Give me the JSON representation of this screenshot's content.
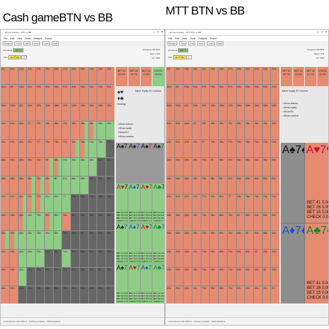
{
  "titles": {
    "left": "Cash gameBTN vs BB",
    "right": "MTT BTN vs BB"
  },
  "windows": [
    {
      "id": "left",
      "titlebar": "Simple Postflop - BTN vs BB",
      "menu": [
        "File",
        "Edit",
        "View",
        "Tools",
        "Analysis",
        "Board"
      ],
      "toolbar": [
        "Ranges",
        "Tree",
        "Calc",
        "Save",
        "Load",
        "Help"
      ],
      "settings": {
        "row1_label": "P1 Range",
        "row1_value": "BB 7 5",
        "flop_label": "Flop",
        "flop_cards": "A♠ 7♥ 2♣",
        "turn_value": "8",
        "right_col": [
          "Progress 100.00%",
          "Expl. 0.3%",
          "Iter 1000"
        ]
      },
      "actions": [
        {
          "label": "BET 41",
          "value": "39.2%",
          "color": "red"
        },
        {
          "label": "BET 26",
          "value": "14.7%",
          "color": "red"
        },
        {
          "label": "BET 15",
          "value": "12.5%",
          "color": "red"
        },
        {
          "label": "CHECK",
          "value": "33.6%",
          "color": "grn"
        }
      ],
      "panel": {
        "suits_top": "♠♥",
        "suits_bot": "♦♣",
        "tab": "Strategy",
        "cols": [
          "Name",
          "Equity",
          "EV",
          "Combos"
        ],
        "checks": [
          "Show actions",
          "Show equity",
          "Show EV",
          "Show combos"
        ]
      },
      "combos": [
        {
          "ranks": [
            "A",
            "7"
          ],
          "suits": [
            "s",
            "s"
          ],
          "tone": "gray",
          "vals": [
            "",
            "",
            "",
            ""
          ]
        },
        {
          "ranks": [
            "A",
            "7"
          ],
          "suits": [
            "s",
            "d"
          ],
          "tone": "gray",
          "vals": [
            "",
            "",
            "",
            ""
          ]
        },
        {
          "ranks": [
            "A",
            "7"
          ],
          "suits": [
            "s",
            "h"
          ],
          "tone": "gray",
          "vals": [
            "",
            "",
            "",
            ""
          ]
        },
        {
          "ranks": [
            "A",
            "7"
          ],
          "suits": [
            "s",
            "c"
          ],
          "tone": "gray",
          "vals": [
            "",
            "",
            "",
            ""
          ]
        },
        {
          "ranks": [
            "A",
            "7"
          ],
          "suits": [
            "h",
            "s"
          ],
          "tone": "grn",
          "vals": [
            "BET 41 0.000",
            "BET 26 0.000",
            "BET 15 0.000",
            "CHECK 0.780"
          ]
        },
        {
          "ranks": [
            "A",
            "7"
          ],
          "suits": [
            "d",
            "s"
          ],
          "tone": "grn",
          "vals": [
            "BET 41 0.000",
            "BET 26 0.000",
            "BET 15 0.000",
            "CHECK 0.796"
          ]
        },
        {
          "ranks": [
            "A",
            "7"
          ],
          "suits": [
            "h",
            "h"
          ],
          "tone": "grn",
          "vals": [
            "BET 41 0.000",
            "BET 26 0.000",
            "BET 15 0.000",
            "CHECK 0.774"
          ]
        },
        {
          "ranks": [
            "A",
            "7"
          ],
          "suits": [
            "c",
            "s"
          ],
          "tone": "grn",
          "vals": [
            "BET 41 0.000",
            "BET 26 0.000",
            "BET 15 0.000",
            "CHECK 0.701"
          ]
        },
        {
          "ranks": [
            "A",
            "7"
          ],
          "suits": [
            "s",
            "d"
          ],
          "tone": "grn",
          "vals": [
            "BET 41 0.000",
            "BET 26 0.000",
            "BET 15 0.000",
            "CHECK 0.780"
          ]
        },
        {
          "ranks": [
            "A",
            "7"
          ],
          "suits": [
            "d",
            "d"
          ],
          "tone": "grn",
          "vals": [
            "BET 41 0.000",
            "BET 26 0.000",
            "BET 15 0.000",
            "CHECK 0.780"
          ]
        },
        {
          "ranks": [
            "A",
            "7"
          ],
          "suits": [
            "h",
            "d"
          ],
          "tone": "grn",
          "vals": [
            "BET 41 0.000",
            "BET 26 0.000",
            "BET 15 0.000",
            "CHECK 0.780"
          ]
        },
        {
          "ranks": [
            "A",
            "7"
          ],
          "suits": [
            "c",
            "d"
          ],
          "tone": "grn",
          "vals": [
            "BET 41 0.000",
            "BET 26 0.000",
            "BET 15 0.000",
            "CHECK 0.780"
          ]
        },
        {
          "ranks": [
            "A",
            "7"
          ],
          "suits": [
            "s",
            "c"
          ],
          "tone": "grn",
          "vals": [
            "BET 41 0.000",
            "BET 26 0.000",
            "BET 15 0.000",
            "CHECK 0.780"
          ]
        },
        {
          "ranks": [
            "A",
            "7"
          ],
          "suits": [
            "h",
            "c"
          ],
          "tone": "grn",
          "vals": [
            "BET 41 0.000",
            "BET 26 0.000",
            "BET 15 0.000",
            "CHECK 0.780"
          ]
        },
        {
          "ranks": [
            "A",
            "7"
          ],
          "suits": [
            "d",
            "c"
          ],
          "tone": "grn",
          "vals": [
            "BET 41 0.000",
            "BET 26 0.000",
            "BET 15 0.000",
            "CHECK 0.780"
          ]
        },
        {
          "ranks": [
            "A",
            "7"
          ],
          "suits": [
            "c",
            "c"
          ],
          "tone": "grn",
          "vals": [
            "BET 41 0.000",
            "BET 26 0.000",
            "BET 15 0.000",
            "CHECK 0.780"
          ]
        }
      ],
      "status": "Connected to 192.168.0.1 - Solving complete - 1000 iterations"
    },
    {
      "id": "right",
      "titlebar": "Simple Postflop - MTT BTN vs BB",
      "menu": [
        "File",
        "Edit",
        "View",
        "Tools",
        "Analysis",
        "Board"
      ],
      "toolbar": [
        "Ranges",
        "Tree",
        "Calc",
        "Save",
        "Load",
        "Help"
      ],
      "settings": {
        "row1_label": "P1 Range",
        "row1_value": "BB 7 5",
        "flop_label": "Flop",
        "flop_cards": "A♠ 7♥ 2♣",
        "turn_value": "8",
        "right_col": [
          "Progress 100.00%",
          "Expl. 0.3%",
          "Iter 1000"
        ]
      },
      "actions": [
        {
          "label": "BET 41",
          "value": "49.7%",
          "color": "red"
        },
        {
          "label": "BET 26",
          "value": "15.3%",
          "color": "red"
        },
        {
          "label": "BET 15",
          "value": "12.1%",
          "color": "red"
        },
        {
          "label": "CHECK",
          "value": "22.9%",
          "color": "red"
        }
      ],
      "panel": {
        "suits_top": "♠♥",
        "suits_bot": "♦♣",
        "tab": "Strategy",
        "cols": [
          "Name",
          "Equity",
          "EV",
          "Combos"
        ],
        "checks": [
          "Show actions",
          "Show equity",
          "Show EV",
          "Show combos"
        ]
      },
      "combos": [
        {
          "ranks": [
            "A",
            "7"
          ],
          "suits": [
            "s",
            "s"
          ],
          "tone": "gray",
          "vals": [
            "",
            "",
            "",
            ""
          ]
        },
        {
          "ranks": [
            "A",
            "7"
          ],
          "suits": [
            "h",
            "h"
          ],
          "tone": "red",
          "vals": [
            "BET 41 0.0496",
            "BET 26 0.0535",
            "BET 15 0.0830",
            "CHECK 0.0040"
          ]
        },
        {
          "ranks": [
            "A",
            "7"
          ],
          "suits": [
            "d",
            "d"
          ],
          "tone": "gray",
          "vals": [
            "",
            "",
            "",
            ""
          ]
        },
        {
          "ranks": [
            "A",
            "7"
          ],
          "suits": [
            "c",
            "c"
          ],
          "tone": "red",
          "vals": [
            "BET 41 0.0496",
            "BET 26 0.0535",
            "BET 15 0.0830",
            "CHECK 0.0040"
          ]
        }
      ],
      "status": "Connected to 192.168.0.1 - Solving complete - 1000 iterations"
    }
  ],
  "hand_ranks": [
    "A",
    "K",
    "Q",
    "J",
    "T",
    "9",
    "8",
    "7",
    "6",
    "5",
    "4",
    "3",
    "2"
  ],
  "grid_left_pattern": [
    "RRRRRRRRRRRRR",
    "RRRRRRRRRRRRR",
    "RRRRRRRRRRRRR",
    "RRRRRRRRRMMGG",
    "RRRRRRRRMMGGD",
    "RRRRRMMGGGGDD",
    "RRRMMMGGGGDDD",
    "RRMMMGGGDDDDD",
    "RRMGGMGRDDDDD",
    "MMGGGGGDDDDDD",
    "RRGGGDDGDDDDD",
    "RRGDDDDDDDDDD",
    "RRDDDDDDDDDDD"
  ],
  "grid_right_pattern": [
    "RRRRRRRRRRRRR",
    "RRRRRRRRRRRRR",
    "RRRRRRRRRRRRR",
    "RRRRRRRRRRRRR",
    "RRRRRRRRRRRRR",
    "RRRRRRRRRRRRR",
    "RRRRRRRRRRRRR",
    "RRRRRRRRRRRRR",
    "RRRRRRRRRRRRR",
    "RRRRRRRRRRRRR",
    "RRRRRRRRRRRRR",
    "RRRRRRRRRRRRR",
    "RRRRRRRRRRRRR"
  ]
}
